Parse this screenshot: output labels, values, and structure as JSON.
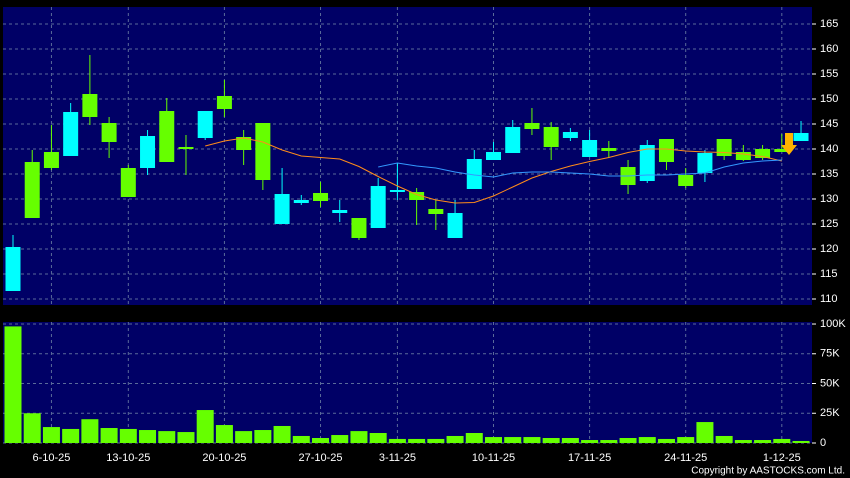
{
  "chart_data": [
    {
      "type": "candlestick",
      "categories": [
        null,
        null,
        "6-10-25",
        null,
        null,
        null,
        "13-10-25",
        null,
        null,
        null,
        null,
        "20-10-25",
        null,
        null,
        null,
        null,
        "27-10-25",
        null,
        null,
        null,
        "3-11-25",
        null,
        null,
        null,
        null,
        "10-11-25",
        null,
        null,
        null,
        null,
        "17-11-25",
        null,
        null,
        null,
        null,
        "24-11-25",
        null,
        null,
        null,
        null,
        "1-12-25",
        null
      ],
      "open": [
        111.6,
        137.4,
        139.4,
        138.6,
        151,
        145.2,
        136.2,
        136.2,
        147.6,
        140.4,
        142.2,
        150.6,
        142.4,
        145.2,
        125,
        129.2,
        131.2,
        127.2,
        126.2,
        124.2,
        131.6,
        131.4,
        128,
        122.2,
        132,
        137.8,
        139.2,
        145.2,
        144.4,
        142.2,
        138.4,
        140.2,
        136.4,
        133.6,
        142,
        134.8,
        135.2,
        142,
        139.4,
        140,
        140,
        141.6
      ],
      "high": [
        122.8,
        139.8,
        144.8,
        149.2,
        158.8,
        146.4,
        136.8,
        143.8,
        150.2,
        142.8,
        147.6,
        153.8,
        143.8,
        145.2,
        136.2,
        130.8,
        133.4,
        129.8,
        126.2,
        134.2,
        137.2,
        132.2,
        129.8,
        129.8,
        139.8,
        141.4,
        145.8,
        148.2,
        145.4,
        144.2,
        143.8,
        141.6,
        137.8,
        141.8,
        142,
        136.2,
        139.8,
        142,
        140.8,
        140.8,
        143,
        145.6
      ],
      "low": [
        111.6,
        126.2,
        135.8,
        138.6,
        144.8,
        138.2,
        130.4,
        134.8,
        137.4,
        134.8,
        141.8,
        146.4,
        136.8,
        131.8,
        125,
        128.8,
        128.4,
        125.4,
        121.8,
        124.2,
        129.8,
        124.8,
        123.8,
        122.2,
        132,
        137.8,
        139.2,
        142.8,
        137.8,
        141.6,
        138.4,
        138.2,
        131,
        133.2,
        135.8,
        132.2,
        133.4,
        137.8,
        137.6,
        137.8,
        139.4,
        141.6
      ],
      "close": [
        120.4,
        126.2,
        136.2,
        147.4,
        146.4,
        141.4,
        130.4,
        142.6,
        137.4,
        140.2,
        147.6,
        148,
        139.8,
        133.8,
        131,
        129.8,
        129.6,
        127.8,
        122.2,
        132.6,
        131.8,
        129.8,
        127,
        127.2,
        138,
        139.4,
        144.4,
        144,
        140.4,
        143.4,
        141.8,
        139.6,
        132.8,
        140.8,
        137.4,
        132.6,
        139.2,
        138.6,
        137.8,
        138.2,
        139.4,
        143.2
      ],
      "up_color": "#00ffff",
      "down_color": "#66ff00",
      "averages": [
        {
          "color": "#ff8c1a",
          "values": [
            null,
            null,
            null,
            null,
            null,
            null,
            null,
            null,
            null,
            null,
            140.6,
            141.6,
            142.2,
            141.4,
            139.8,
            138.6,
            138.3,
            138,
            136.5,
            134.5,
            132.6,
            130.9,
            129.8,
            129.2,
            129.3,
            130.6,
            132.4,
            134.2,
            135.5,
            136.6,
            137.5,
            138.3,
            139.3,
            140,
            140,
            139.6,
            139.4,
            139.3,
            139,
            138.5,
            137.6,
            null
          ]
        },
        {
          "color": "#3399ff",
          "values": [
            null,
            null,
            null,
            null,
            null,
            null,
            null,
            null,
            null,
            null,
            null,
            null,
            null,
            null,
            null,
            null,
            null,
            null,
            null,
            136.4,
            137.2,
            136.6,
            136.2,
            135.4,
            134.8,
            134.4,
            135.2,
            135.4,
            135.4,
            135.2,
            135,
            134.6,
            134.6,
            134.8,
            134.8,
            135,
            135.2,
            136.4,
            137.2,
            137.6,
            137.8,
            null
          ]
        }
      ],
      "ylim": [
        108.8,
        168.4
      ],
      "yticks": [
        110,
        115,
        120,
        125,
        130,
        135,
        140,
        145,
        150,
        155,
        160,
        165
      ],
      "grid": true
    },
    {
      "type": "bar",
      "color": "#66ff00",
      "values": [
        98000,
        25000,
        13400,
        11800,
        20000,
        12600,
        11800,
        10900,
        10000,
        9200,
        27700,
        15100,
        10000,
        10900,
        14300,
        5900,
        4200,
        6700,
        10000,
        8400,
        3400,
        3400,
        3400,
        5900,
        8400,
        5000,
        5000,
        5000,
        4200,
        4200,
        2500,
        2500,
        4200,
        5000,
        3400,
        5000,
        17600,
        5900,
        2500,
        2500,
        3400,
        1700
      ],
      "ylim": [
        0,
        101700
      ],
      "yticks": [
        {
          "value": 0,
          "label": "0"
        },
        {
          "value": 25000,
          "label": "25K"
        },
        {
          "value": 50000,
          "label": "50K"
        },
        {
          "value": 75000,
          "label": "75K"
        },
        {
          "value": 100000,
          "label": "100K"
        }
      ],
      "grid": true
    }
  ],
  "copyright": "Copyright by AASTOCKS.com Ltd."
}
